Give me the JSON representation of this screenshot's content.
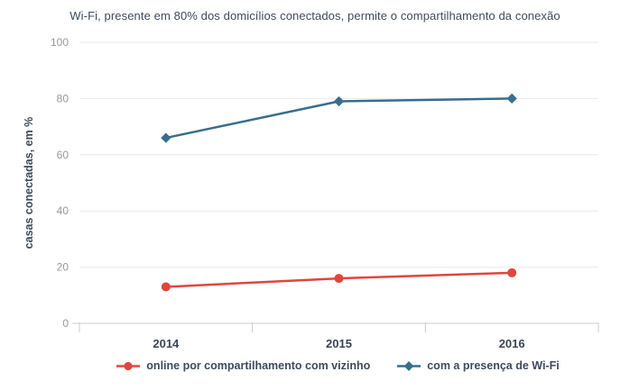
{
  "chart_data": {
    "type": "line",
    "title": "Wi-Fi, presente em 80% dos domicílios conectados, permite o compartilhamento da conexão",
    "ylabel": "casas conectadas, em %",
    "xlabel": "",
    "categories": [
      "2014",
      "2015",
      "2016"
    ],
    "series": [
      {
        "name": "online por compartilhamento com vizinho",
        "values": [
          13,
          16,
          18
        ],
        "color": "#e0463c",
        "marker": "circle"
      },
      {
        "name": "com a presença de Wi-Fi",
        "values": [
          66,
          79,
          80
        ],
        "color": "#376d8d",
        "marker": "diamond"
      }
    ],
    "ylim": [
      0,
      100
    ],
    "yticks": [
      0,
      20,
      40,
      60,
      80,
      100
    ],
    "grid": true,
    "legend_position": "bottom",
    "colors": {
      "background": "#ffffff",
      "grid": "#e9e9e9",
      "axis": "#cccccc",
      "ytick_label": "#999999",
      "text": "#3d4b5c"
    }
  }
}
